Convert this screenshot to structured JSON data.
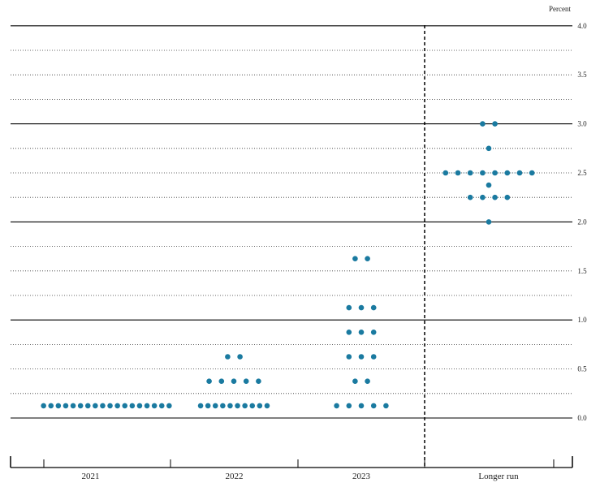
{
  "chart_data": {
    "type": "scatter",
    "unit_label": "Percent",
    "ylim": [
      -0.5,
      4.0
    ],
    "yticks": [
      "0.0",
      "0.5",
      "1.0",
      "1.5",
      "2.0",
      "2.5",
      "3.0",
      "3.5",
      "4.0"
    ],
    "categories": [
      "2021",
      "2022",
      "2023",
      "Longer run"
    ],
    "series": [
      {
        "category": "2021",
        "dots": [
          {
            "y": 0.125,
            "count": 18
          }
        ]
      },
      {
        "category": "2022",
        "dots": [
          {
            "y": 0.125,
            "count": 10
          },
          {
            "y": 0.375,
            "count": 5
          },
          {
            "y": 0.625,
            "count": 2
          }
        ]
      },
      {
        "category": "2023",
        "dots": [
          {
            "y": 0.125,
            "count": 5
          },
          {
            "y": 0.375,
            "count": 2
          },
          {
            "y": 0.625,
            "count": 3
          },
          {
            "y": 0.875,
            "count": 3
          },
          {
            "y": 1.125,
            "count": 3
          },
          {
            "y": 1.625,
            "count": 2
          }
        ]
      },
      {
        "category": "Longer run",
        "dots": [
          {
            "y": 2.0,
            "count": 1
          },
          {
            "y": 2.25,
            "count": 4
          },
          {
            "y": 2.375,
            "count": 1
          },
          {
            "y": 2.5,
            "count": 8
          },
          {
            "y": 2.75,
            "count": 1
          },
          {
            "y": 3.0,
            "count": 2
          }
        ]
      }
    ],
    "dot_color": "#1a7aa0",
    "grid": true,
    "legend": "none"
  }
}
